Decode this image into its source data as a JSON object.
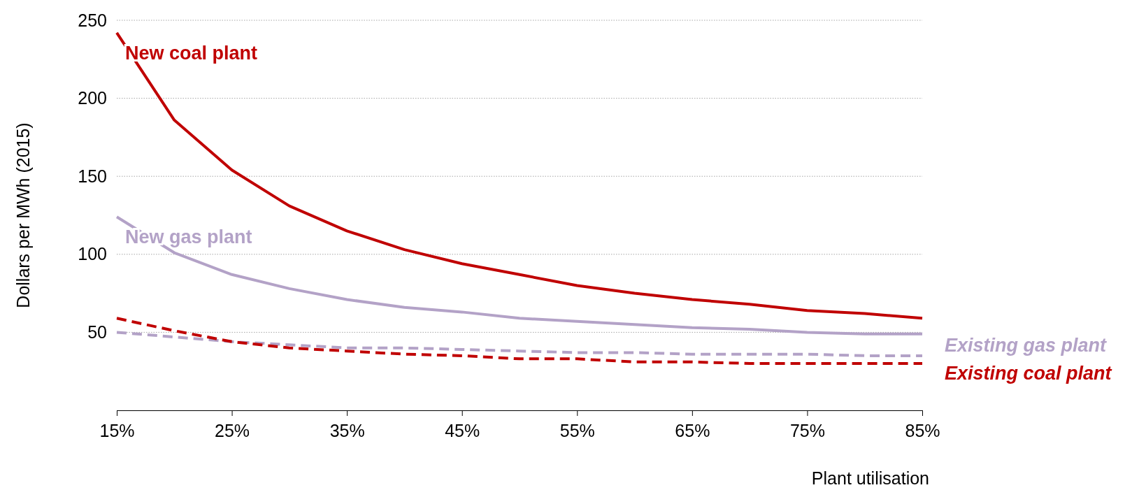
{
  "chart_data": {
    "type": "line",
    "xlabel": "Plant utilisation",
    "ylabel": "Dollars per MWh (2015)",
    "x": [
      15,
      20,
      25,
      30,
      35,
      40,
      45,
      50,
      55,
      60,
      65,
      70,
      75,
      80,
      85
    ],
    "xlim": [
      15,
      85
    ],
    "xticks": [
      {
        "value": 15,
        "label": "15%"
      },
      {
        "value": 25,
        "label": "25%"
      },
      {
        "value": 35,
        "label": "35%"
      },
      {
        "value": 45,
        "label": "45%"
      },
      {
        "value": 55,
        "label": "55%"
      },
      {
        "value": 65,
        "label": "65%"
      },
      {
        "value": 75,
        "label": "75%"
      },
      {
        "value": 85,
        "label": "85%"
      }
    ],
    "ylim": [
      0,
      250
    ],
    "yticks": [
      50,
      100,
      150,
      200,
      250
    ],
    "grid": "y",
    "marker": "none",
    "series": [
      {
        "name": "New coal plant",
        "color": "#c00000",
        "line_style": "solid",
        "values": [
          242,
          186,
          154,
          131,
          115,
          103,
          94,
          87,
          80,
          75,
          71,
          68,
          64,
          62,
          59
        ]
      },
      {
        "name": "New gas plant",
        "color": "#b3a2c7",
        "line_style": "solid",
        "values": [
          124,
          101,
          87,
          78,
          71,
          66,
          63,
          59,
          57,
          55,
          53,
          52,
          50,
          49,
          49
        ]
      },
      {
        "name": "Existing gas plant",
        "color": "#b3a2c7",
        "line_style": "dashed",
        "values": [
          50,
          47,
          44,
          42,
          40,
          40,
          39,
          38,
          37,
          37,
          36,
          36,
          36,
          35,
          35
        ]
      },
      {
        "name": "Existing coal plant",
        "color": "#c00000",
        "line_style": "dashed",
        "values": [
          59,
          51,
          44,
          40,
          38,
          36,
          35,
          33,
          33,
          31,
          31,
          30,
          30,
          30,
          30
        ]
      }
    ]
  }
}
